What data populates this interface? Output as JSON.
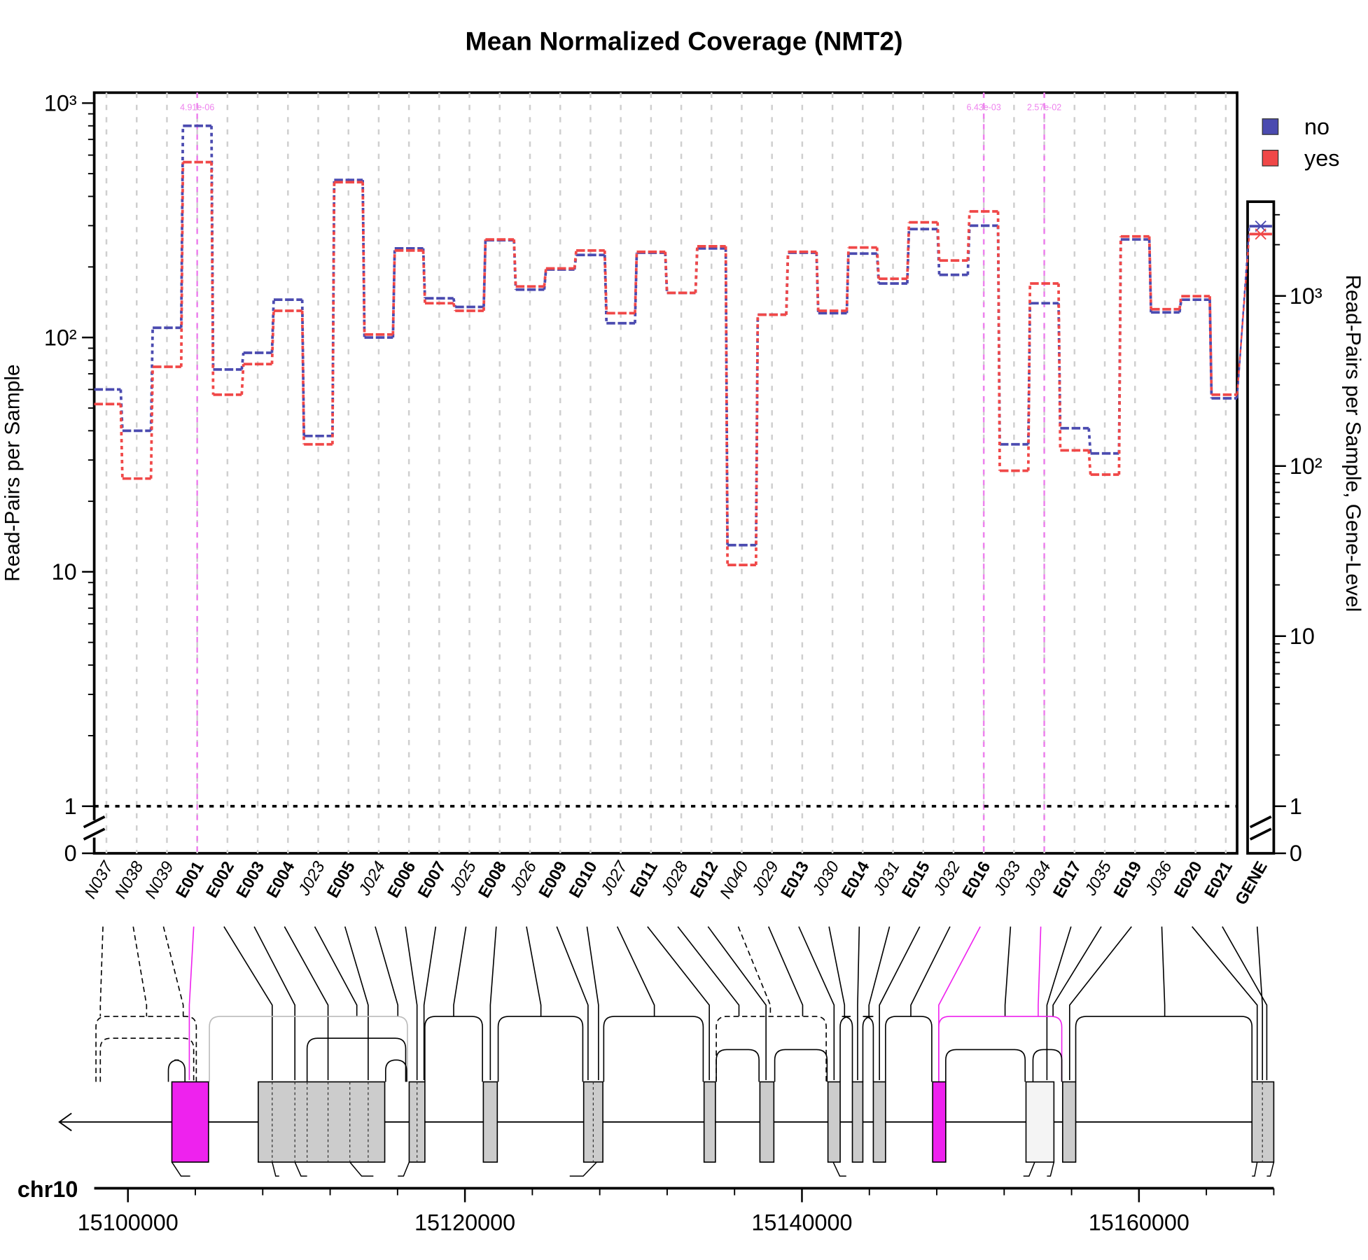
{
  "chart_data": {
    "type": "step",
    "title": "Mean Normalized Coverage (NMT2)",
    "y_label": "Read-Pairs per Sample",
    "y2_label": "Read-Pairs per Sample, Gene-Level",
    "log_scale": true,
    "grid": true,
    "legend": "top-right",
    "categories": [
      "N037",
      "N038",
      "N039",
      "E001",
      "E002",
      "E003",
      "E004",
      "J023",
      "E005",
      "J024",
      "E006",
      "E007",
      "J025",
      "E008",
      "J026",
      "E009",
      "E010",
      "J027",
      "E011",
      "J028",
      "E012",
      "N040",
      "J029",
      "E013",
      "J030",
      "E014",
      "J031",
      "E015",
      "J032",
      "E016",
      "J033",
      "J034",
      "E017",
      "J035",
      "E019",
      "J036",
      "E020",
      "E021"
    ],
    "gene_label": "GENE",
    "series": [
      {
        "name": "no",
        "color": "#4b4bb0",
        "values": [
          60,
          40,
          110,
          800,
          73,
          86,
          145,
          38,
          470,
          100,
          240,
          147,
          135,
          260,
          160,
          195,
          225,
          115,
          230,
          155,
          240,
          13,
          125,
          230,
          127,
          228,
          170,
          290,
          185,
          300,
          35,
          140,
          41,
          32,
          262,
          128,
          145,
          55
        ],
        "gene_value": 2570,
        "axis": "y2"
      },
      {
        "name": "yes",
        "color": "#f04848",
        "values": [
          52,
          25,
          75,
          560,
          57,
          77,
          130,
          35,
          460,
          103,
          235,
          140,
          130,
          262,
          165,
          197,
          235,
          127,
          232,
          155,
          245,
          10.7,
          125,
          232,
          130,
          242,
          178,
          310,
          213,
          345,
          27,
          170,
          33,
          26,
          270,
          132,
          150,
          57
        ],
        "gene_value": 2310,
        "axis": "y2"
      }
    ],
    "ylim": [
      1,
      1000
    ],
    "yticks": [
      0,
      1,
      10,
      {
        "value": 100,
        "label": "10²"
      },
      {
        "value": 1000,
        "label": "10³"
      }
    ],
    "y2lim": [
      1,
      1000
    ],
    "y2ticks": [
      0,
      1,
      10,
      {
        "value": 100,
        "label": "10²"
      },
      {
        "value": 1000,
        "label": "10³"
      }
    ],
    "annotations": [
      {
        "at": "E001",
        "text": "4.91e-06"
      },
      {
        "at": "E016",
        "text": "6.43e-03"
      },
      {
        "at": "J034",
        "text": "2.57e-02"
      }
    ],
    "genome_axis": {
      "label": "chr10",
      "xlim": [
        15098000,
        15168000
      ],
      "xticks": [
        15100000,
        15120000,
        15140000,
        15160000
      ]
    }
  }
}
